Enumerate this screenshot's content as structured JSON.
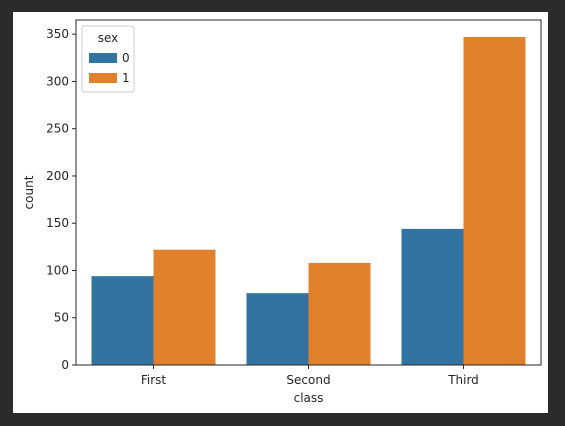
{
  "colors": {
    "background_outer": "#2b2b2b",
    "series0": "#3274a1",
    "series1": "#e1812c"
  },
  "chart_data": {
    "type": "bar",
    "title": "",
    "xlabel": "class",
    "ylabel": "count",
    "categories": [
      "First",
      "Second",
      "Third"
    ],
    "series": [
      {
        "name": "0",
        "values": [
          94,
          76,
          144
        ],
        "color": "#3274a1"
      },
      {
        "name": "1",
        "values": [
          122,
          108,
          347
        ],
        "color": "#e1812c"
      }
    ],
    "ylim": [
      0,
      365
    ],
    "yticks": [
      0,
      50,
      100,
      150,
      200,
      250,
      300,
      350
    ],
    "grid": false,
    "legend": {
      "title": "sex",
      "placement": "top-left"
    }
  }
}
